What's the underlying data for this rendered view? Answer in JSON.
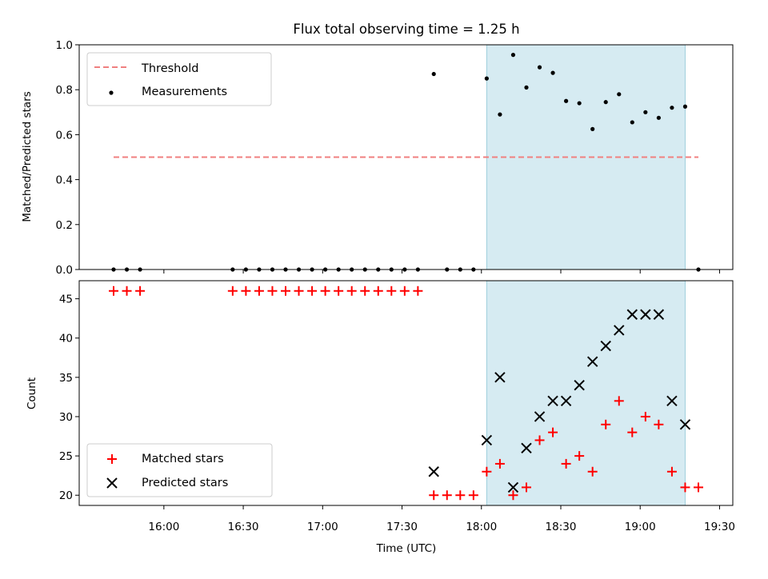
{
  "chart_data": [
    {
      "panel": "top",
      "type": "scatter",
      "title": "Flux total observing time = 1.25 h",
      "xlabel": "",
      "ylabel": "Matched/Predicted stars",
      "ylim": [
        0,
        1.0
      ],
      "yticks": [
        "0.0",
        "0.2",
        "0.4",
        "0.6",
        "0.8",
        "1.0"
      ],
      "shaded_region": [
        "18:02",
        "19:17"
      ],
      "legend_position": "upper left",
      "threshold": {
        "name": "Threshold",
        "y": 0.5,
        "x_start": "15:41",
        "x_end": "19:22",
        "color": "#f08080"
      },
      "series": [
        {
          "name": "Measurements",
          "color": "#000000",
          "x": [
            "15:41",
            "15:46",
            "15:51",
            "16:26",
            "16:31",
            "16:36",
            "16:41",
            "16:46",
            "16:51",
            "16:56",
            "17:01",
            "17:06",
            "17:11",
            "17:16",
            "17:21",
            "17:26",
            "17:31",
            "17:36",
            "17:42",
            "17:47",
            "17:52",
            "17:57",
            "18:02",
            "18:07",
            "18:12",
            "18:17",
            "18:22",
            "18:27",
            "18:32",
            "18:37",
            "18:42",
            "18:47",
            "18:52",
            "18:57",
            "19:02",
            "19:07",
            "19:12",
            "19:17",
            "19:22"
          ],
          "values": [
            0,
            0,
            0,
            0,
            0,
            0,
            0,
            0,
            0,
            0,
            0,
            0,
            0,
            0,
            0,
            0,
            0,
            0,
            0.87,
            0,
            0,
            0,
            0.85,
            0.69,
            0.955,
            0.81,
            0.9,
            0.875,
            0.75,
            0.74,
            0.625,
            0.745,
            0.78,
            0.655,
            0.7,
            0.675,
            0.72,
            0.725,
            0
          ]
        }
      ]
    },
    {
      "panel": "bottom",
      "type": "scatter",
      "title": "",
      "xlabel": "Time (UTC)",
      "ylabel": "Count",
      "ylim": [
        18.7,
        47.3
      ],
      "yticks": [
        "20",
        "25",
        "30",
        "35",
        "40",
        "45"
      ],
      "xticks": [
        "16:00",
        "16:30",
        "17:00",
        "17:30",
        "18:00",
        "18:30",
        "19:00",
        "19:30"
      ],
      "shaded_region": [
        "18:02",
        "19:17"
      ],
      "legend_position": "lower left",
      "series": [
        {
          "name": "Matched stars",
          "marker": "plus",
          "color": "#ff0000",
          "x": [
            "15:41",
            "15:46",
            "15:51",
            "16:26",
            "16:31",
            "16:36",
            "16:41",
            "16:46",
            "16:51",
            "16:56",
            "17:01",
            "17:06",
            "17:11",
            "17:16",
            "17:21",
            "17:26",
            "17:31",
            "17:36",
            "17:42",
            "17:47",
            "17:52",
            "17:57",
            "18:02",
            "18:07",
            "18:12",
            "18:17",
            "18:22",
            "18:27",
            "18:32",
            "18:37",
            "18:42",
            "18:47",
            "18:52",
            "18:57",
            "19:02",
            "19:07",
            "19:12",
            "19:17",
            "19:22"
          ],
          "values": [
            46,
            46,
            46,
            46,
            46,
            46,
            46,
            46,
            46,
            46,
            46,
            46,
            46,
            46,
            46,
            46,
            46,
            46,
            20,
            20,
            20,
            20,
            23,
            24,
            20,
            21,
            27,
            28,
            24,
            25,
            23,
            29,
            32,
            28,
            30,
            29,
            23,
            21,
            21
          ]
        },
        {
          "name": "Predicted stars",
          "marker": "x",
          "color": "#000000",
          "x": [
            "17:42",
            "18:02",
            "18:07",
            "18:12",
            "18:17",
            "18:22",
            "18:27",
            "18:32",
            "18:37",
            "18:42",
            "18:47",
            "18:52",
            "18:57",
            "19:02",
            "19:07",
            "19:12",
            "19:17"
          ],
          "values": [
            23,
            27,
            35,
            21,
            26,
            30,
            32,
            32,
            34,
            37,
            39,
            41,
            43,
            43,
            43,
            32,
            29
          ]
        }
      ]
    }
  ]
}
